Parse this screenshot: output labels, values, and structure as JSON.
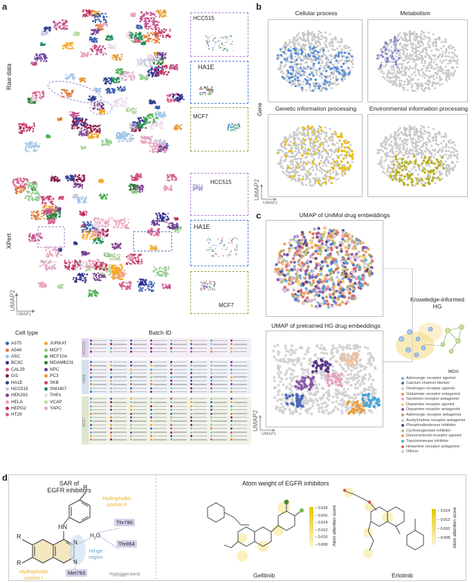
{
  "panels": {
    "a": "a",
    "b": "b",
    "c": "c",
    "d": "d"
  },
  "panel_a": {
    "raw_label": "Raw data",
    "xpert_label": "XPert",
    "axis_x": "UMAP1",
    "axis_y": "UMAP2",
    "raw_insets": [
      "HCC515",
      "HA1E",
      "MCF7"
    ],
    "xpert_insets": [
      "HCC515",
      "HA1E",
      "MCF7"
    ],
    "cell_type_title": "Cell type",
    "batch_title": "Batch ID",
    "cell_types_col1": [
      "A375",
      "A549",
      "ASC",
      "BC3C",
      "CAL29",
      "GI1",
      "HA1E",
      "HCC515",
      "HEK293",
      "HELA",
      "HEPG2",
      "HT29"
    ],
    "cell_types_col2": [
      "JURKAT",
      "MCF7",
      "MCF10A",
      "MDAMB231",
      "NPC",
      "PC3",
      "SKB",
      "SNU407",
      "THP1",
      "VCAP",
      "YAPC"
    ],
    "cell_colors_col1": [
      "#3a5fb0",
      "#e07b39",
      "#9ec3e6",
      "#2b2b8c",
      "#c44e8a",
      "#8b1a4a",
      "#2f3f8f",
      "#c9c4de",
      "#7b3f8f",
      "#e8a0b8",
      "#c22f5a",
      "#d35d8b"
    ],
    "cell_colors_col2": [
      "#f5a623",
      "#8fc98a",
      "#4caf50",
      "#2e7d32",
      "#6a3d9a",
      "#e89a3a",
      "#cc4477",
      "#1f8f5a",
      "#f0d8e8",
      "#b8d6a0",
      "#dba8c8"
    ],
    "batch_groups": [
      "HCC515",
      "HA1E",
      "MCF7"
    ],
    "batch_group_colors": [
      "#e9dff0",
      "#dde6f3",
      "#e6ebd8"
    ]
  },
  "panel_b": {
    "titles": [
      "Cellular process",
      "Metabolism",
      "Genetic information processing",
      "Environmental information processing"
    ],
    "colors": [
      "#5a8fd8",
      "#8a8ad0",
      "#e8c020",
      "#b8b020"
    ],
    "ylabel": "Gene",
    "axis_x": "UMAP1",
    "axis_y": "UMAP2"
  },
  "panel_c": {
    "title_top": "UMAP of UniMol drug embeddings",
    "title_bottom": "UMAP of pretrained HG drug embeddings",
    "kg_label_1": "Knowledge-informed",
    "kg_label_2": "HG",
    "axis_x": "UMAP1",
    "axis_y": "UMAP2",
    "moa_title": "MOA",
    "moa": [
      {
        "label": "Adrenergic receptor agonist",
        "color": "#8aa8d8"
      },
      {
        "label": "Calcium channel blocker",
        "color": "#4a6ab8"
      },
      {
        "label": "Oestrogen receptor agonist",
        "color": "#f0c0a0"
      },
      {
        "label": "Glutamate receptor antagonist",
        "color": "#e89060"
      },
      {
        "label": "Serotonin receptor antagonist",
        "color": "#e8a0c0"
      },
      {
        "label": "Dopamine receptor agonist",
        "color": "#f0d060"
      },
      {
        "label": "Dopamine receptor antagonist",
        "color": "#8a5aa8"
      },
      {
        "label": "Adrenergic receptor antagonist",
        "color": "#b8a060"
      },
      {
        "label": "Acetylcholine receptor antagonist",
        "color": "#d8b8e0"
      },
      {
        "label": "Phosphodiesterase inhibitor",
        "color": "#5a3a8a"
      },
      {
        "label": "Cyclooxygenase inhibitor",
        "color": "#a0c080"
      },
      {
        "label": "Glucocorticoid receptor agonist",
        "color": "#e8a040"
      },
      {
        "label": "Topoisomerase inhibitor",
        "color": "#4aa8d8"
      },
      {
        "label": "Histamine receptor antagonist",
        "color": "#e06060"
      },
      {
        "label": "Others",
        "color": "#c8c8c8"
      }
    ]
  },
  "panel_d": {
    "sar_title_1": "SAR of",
    "sar_title_2": "EGFR inhibitors",
    "atom_title": "Atom weight of EGFR inhibitors",
    "hp2_1": "Hydrophobic",
    "hp2_2": "pocket II",
    "hp1_1": "Hydrophobic",
    "hp1_2": "pocket I",
    "hinge_1": "Hinge",
    "hinge_2": "region",
    "hbond": "Hydrogen bond",
    "thr790": "Thr790",
    "thr854": "Thr854",
    "met793": "Met793",
    "water": "H",
    "water_sub": "2",
    "water_o": "O",
    "hn": "HN",
    "r": "R",
    "n1": "N",
    "n3": "N",
    "gefitinib": "Gefitinib",
    "erlotinib": "Erlotinib",
    "cbar_label": "Atom attention score",
    "cbar1_ticks": [
      "0.018",
      "0.016",
      "0.014",
      "0.012",
      "0.010",
      "0.008"
    ],
    "cbar2_ticks": [
      "0.014",
      "0.012",
      "0.010",
      "0.008"
    ]
  }
}
